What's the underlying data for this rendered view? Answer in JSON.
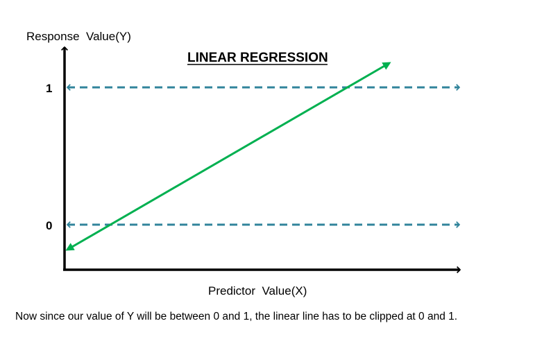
{
  "title": "LINEAR REGRESSION",
  "y_axis_label": "Response  Value(Y)",
  "x_axis_label": "Predictor  Value(X)",
  "ticks": {
    "one": "1",
    "zero": "0"
  },
  "caption": "Now since our value of Y will be between 0 and 1, the linear line has to be clipped at 0 and 1.",
  "colors": {
    "axis": "#000000",
    "bound_line": "#31849b",
    "regression_line": "#00b050"
  }
}
